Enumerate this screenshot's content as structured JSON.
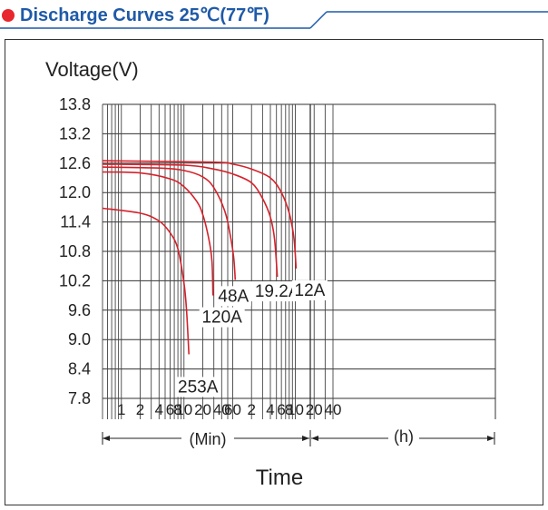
{
  "header": {
    "title": "Discharge Curves 25℃(77℉)",
    "accent_color": "#1e5aa8",
    "bullet_color": "#e8262d"
  },
  "chart_data": {
    "type": "line",
    "ylabel": "Voltage(V)",
    "xlabel": "Time",
    "y_ticks": [
      "13.8",
      "13.2",
      "12.6",
      "12.0",
      "11.4",
      "10.8",
      "10.2",
      "9.6",
      "9.0",
      "8.4",
      "7.8"
    ],
    "ylim": [
      7.8,
      13.8
    ],
    "x_scale": "log",
    "x_ticks_min": [
      "1",
      "2",
      "4",
      "6",
      "8",
      "10",
      "20",
      "40",
      "60"
    ],
    "x_ticks_h": [
      "2",
      "4",
      "6",
      "8",
      "10",
      "20",
      "40"
    ],
    "x_unit_min": "(Min)",
    "x_unit_h": "(h)",
    "grid": true,
    "line_color": "#d6212a",
    "series": [
      {
        "name": "253A",
        "points": [
          [
            0.5,
            11.68
          ],
          [
            2,
            11.58
          ],
          [
            4,
            11.42
          ],
          [
            6,
            11.18
          ],
          [
            8,
            10.85
          ],
          [
            10,
            10.15
          ],
          [
            11,
            9.6
          ],
          [
            12,
            8.7
          ]
        ]
      },
      {
        "name": "120A",
        "points": [
          [
            0.5,
            12.42
          ],
          [
            2,
            12.4
          ],
          [
            6,
            12.28
          ],
          [
            10,
            12.12
          ],
          [
            16,
            11.82
          ],
          [
            20,
            11.55
          ],
          [
            25,
            11.05
          ],
          [
            28,
            10.6
          ],
          [
            29,
            9.9
          ]
        ]
      },
      {
        "name": "48A",
        "points": [
          [
            0.5,
            12.52
          ],
          [
            4,
            12.5
          ],
          [
            10,
            12.45
          ],
          [
            20,
            12.32
          ],
          [
            30,
            12.1
          ],
          [
            45,
            11.62
          ],
          [
            55,
            11.12
          ],
          [
            62,
            10.7
          ],
          [
            66,
            10.22
          ]
        ]
      },
      {
        "name": "19.2A",
        "points": [
          [
            0.5,
            12.58
          ],
          [
            10,
            12.56
          ],
          [
            30,
            12.48
          ],
          [
            60,
            12.38
          ],
          [
            120,
            12.2
          ],
          [
            180,
            11.88
          ],
          [
            240,
            11.5
          ],
          [
            280,
            11.05
          ],
          [
            310,
            10.28
          ]
        ]
      },
      {
        "name": "12A",
        "points": [
          [
            0.5,
            12.65
          ],
          [
            30,
            12.62
          ],
          [
            60,
            12.58
          ],
          [
            120,
            12.48
          ],
          [
            240,
            12.3
          ],
          [
            360,
            12.0
          ],
          [
            480,
            11.58
          ],
          [
            570,
            11.08
          ],
          [
            620,
            10.45
          ]
        ]
      }
    ]
  }
}
